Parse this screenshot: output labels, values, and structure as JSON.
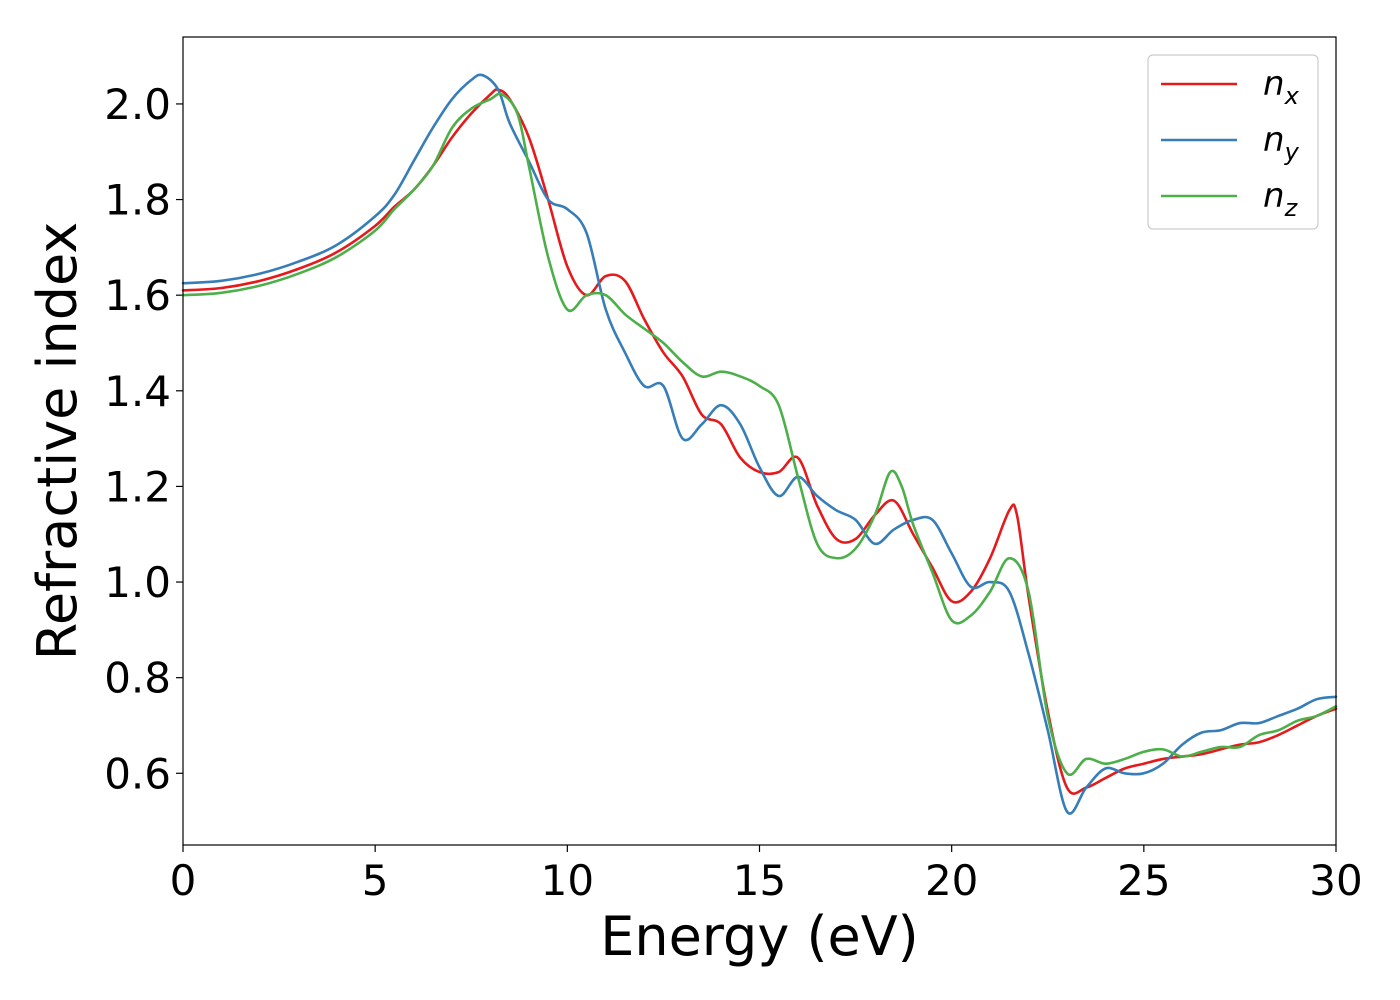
{
  "chart_data": {
    "type": "line",
    "title": "",
    "xlabel": "Energy (eV)",
    "ylabel": "Refractive index",
    "xlim": [
      0,
      30
    ],
    "ylim": [
      0.45,
      2.14
    ],
    "x_ticks": [
      "0",
      "5",
      "10",
      "15",
      "20",
      "25",
      "30"
    ],
    "y_ticks": [
      "0.6",
      "0.8",
      "1.0",
      "1.2",
      "1.4",
      "1.6",
      "1.8",
      "2.0"
    ],
    "grid": false,
    "legend_position": "top-right",
    "series": [
      {
        "name": "n",
        "subscript": "x",
        "color": "#e41a1c",
        "x": [
          0,
          1,
          2,
          3,
          4,
          5,
          5.5,
          6,
          6.5,
          7,
          7.5,
          8,
          8.2,
          8.5,
          9,
          9.5,
          10,
          10.5,
          11,
          11.5,
          12,
          12.5,
          13,
          13.5,
          14,
          14.5,
          15,
          15.5,
          16,
          16.5,
          17,
          17.5,
          18,
          18.5,
          19,
          19.5,
          20,
          20.5,
          21,
          21.5,
          21.7,
          22,
          22.5,
          23,
          23.5,
          24,
          24.5,
          25,
          25.5,
          26,
          26.5,
          27,
          27.5,
          28,
          28.5,
          29,
          29.5,
          30
        ],
        "y": [
          1.61,
          1.615,
          1.63,
          1.655,
          1.69,
          1.745,
          1.785,
          1.82,
          1.87,
          1.93,
          1.98,
          2.02,
          2.03,
          2.01,
          1.93,
          1.8,
          1.66,
          1.6,
          1.64,
          1.63,
          1.55,
          1.48,
          1.43,
          1.35,
          1.33,
          1.26,
          1.23,
          1.23,
          1.26,
          1.16,
          1.09,
          1.09,
          1.14,
          1.17,
          1.1,
          1.03,
          0.96,
          0.98,
          1.05,
          1.15,
          1.14,
          0.97,
          0.73,
          0.57,
          0.57,
          0.59,
          0.61,
          0.62,
          0.63,
          0.635,
          0.64,
          0.65,
          0.66,
          0.665,
          0.68,
          0.7,
          0.72,
          0.735
        ]
      },
      {
        "name": "n",
        "subscript": "y",
        "color": "#377eb8",
        "x": [
          0,
          1,
          2,
          3,
          4,
          5,
          5.5,
          6,
          6.5,
          7,
          7.5,
          7.8,
          8.2,
          8.5,
          9,
          9.5,
          10,
          10.5,
          11,
          11.5,
          12,
          12.5,
          13,
          13.5,
          14,
          14.5,
          15,
          15.5,
          16,
          16.5,
          17,
          17.5,
          18,
          18.5,
          19,
          19.5,
          20,
          20.5,
          21,
          21.5,
          22,
          22.5,
          23,
          23.5,
          24,
          24.5,
          25,
          25.5,
          26,
          26.5,
          27,
          27.5,
          28,
          28.5,
          29,
          29.5,
          30
        ],
        "y": [
          1.625,
          1.63,
          1.645,
          1.67,
          1.705,
          1.765,
          1.81,
          1.88,
          1.95,
          2.01,
          2.05,
          2.06,
          2.03,
          1.96,
          1.88,
          1.8,
          1.78,
          1.73,
          1.57,
          1.48,
          1.41,
          1.41,
          1.3,
          1.33,
          1.37,
          1.33,
          1.24,
          1.18,
          1.22,
          1.18,
          1.15,
          1.13,
          1.08,
          1.11,
          1.13,
          1.13,
          1.06,
          0.99,
          1.0,
          0.98,
          0.85,
          0.69,
          0.52,
          0.57,
          0.61,
          0.6,
          0.6,
          0.62,
          0.66,
          0.685,
          0.69,
          0.705,
          0.705,
          0.72,
          0.735,
          0.755,
          0.76
        ]
      },
      {
        "name": "n",
        "subscript": "z",
        "color": "#4daf4a",
        "x": [
          0,
          1,
          2,
          3,
          4,
          5,
          5.5,
          6,
          6.5,
          7,
          7.5,
          8,
          8.3,
          8.7,
          9,
          9.5,
          10,
          10.5,
          11,
          11.5,
          12,
          12.5,
          13,
          13.5,
          14,
          14.5,
          15,
          15.5,
          16,
          16.5,
          17,
          17.5,
          18,
          18.4,
          18.7,
          19,
          19.5,
          20,
          20.5,
          21,
          21.5,
          22,
          22.5,
          23,
          23.5,
          24,
          24.5,
          25,
          25.5,
          26,
          26.5,
          27,
          27.5,
          28,
          28.5,
          29,
          29.5,
          30
        ],
        "y": [
          1.6,
          1.605,
          1.62,
          1.645,
          1.68,
          1.735,
          1.78,
          1.82,
          1.87,
          1.95,
          1.99,
          2.01,
          2.02,
          1.98,
          1.87,
          1.68,
          1.57,
          1.6,
          1.6,
          1.56,
          1.53,
          1.5,
          1.46,
          1.43,
          1.44,
          1.43,
          1.41,
          1.37,
          1.22,
          1.08,
          1.05,
          1.07,
          1.14,
          1.23,
          1.2,
          1.12,
          1.02,
          0.92,
          0.93,
          0.98,
          1.05,
          0.98,
          0.72,
          0.6,
          0.63,
          0.62,
          0.63,
          0.645,
          0.65,
          0.635,
          0.645,
          0.655,
          0.655,
          0.68,
          0.69,
          0.71,
          0.72,
          0.74
        ]
      }
    ]
  }
}
